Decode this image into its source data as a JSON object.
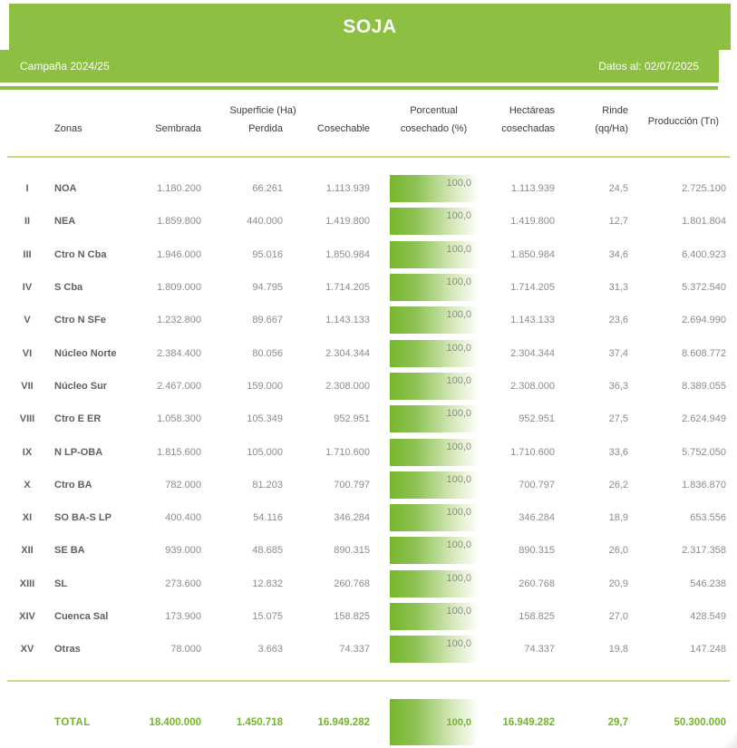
{
  "header": {
    "title": "SOJA",
    "campaign": "Campaña 2024/25",
    "data_as_of": "Datos al: 02/07/2025"
  },
  "columns": {
    "zonas": "Zonas",
    "superficie_group": "Superficie (Ha)",
    "sembrada": "Sembrada",
    "perdida": "Perdida",
    "cosechable": "Cosechable",
    "porcentual_line1": "Porcentual",
    "porcentual_line2": "cosechado (%)",
    "hectareas_line1": "Hectáreas",
    "hectareas_line2": "cosechadas",
    "rinde_line1": "Rinde",
    "rinde_line2": "(qq/Ha)",
    "produccion": "Producción (Tn)"
  },
  "rows": [
    {
      "num": "I",
      "zona": "NOA",
      "sembrada": "1.180.200",
      "perdida": "66.261",
      "cosechable": "1.113.939",
      "porcentual": "100,0",
      "hectareas": "1.113.939",
      "rinde": "24,5",
      "produccion": "2.725.100"
    },
    {
      "num": "II",
      "zona": "NEA",
      "sembrada": "1.859.800",
      "perdida": "440.000",
      "cosechable": "1.419.800",
      "porcentual": "100,0",
      "hectareas": "1.419.800",
      "rinde": "12,7",
      "produccion": "1.801.804"
    },
    {
      "num": "III",
      "zona": "Ctro N Cba",
      "sembrada": "1.946.000",
      "perdida": "95.016",
      "cosechable": "1.850.984",
      "porcentual": "100,0",
      "hectareas": "1.850.984",
      "rinde": "34,6",
      "produccion": "6.400.923"
    },
    {
      "num": "IV",
      "zona": "S Cba",
      "sembrada": "1.809.000",
      "perdida": "94.795",
      "cosechable": "1.714.205",
      "porcentual": "100,0",
      "hectareas": "1.714.205",
      "rinde": "31,3",
      "produccion": "5.372.540"
    },
    {
      "num": "V",
      "zona": "Ctro N SFe",
      "sembrada": "1.232.800",
      "perdida": "89.667",
      "cosechable": "1.143.133",
      "porcentual": "100,0",
      "hectareas": "1.143.133",
      "rinde": "23,6",
      "produccion": "2.694.990"
    },
    {
      "num": "VI",
      "zona": "Núcleo Norte",
      "sembrada": "2.384.400",
      "perdida": "80.056",
      "cosechable": "2.304.344",
      "porcentual": "100,0",
      "hectareas": "2.304.344",
      "rinde": "37,4",
      "produccion": "8.608.772"
    },
    {
      "num": "VII",
      "zona": "Núcleo Sur",
      "sembrada": "2.467.000",
      "perdida": "159.000",
      "cosechable": "2.308.000",
      "porcentual": "100,0",
      "hectareas": "2.308.000",
      "rinde": "36,3",
      "produccion": "8.389.055"
    },
    {
      "num": "VIII",
      "zona": "Ctro E ER",
      "sembrada": "1.058.300",
      "perdida": "105.349",
      "cosechable": "952.951",
      "porcentual": "100,0",
      "hectareas": "952.951",
      "rinde": "27,5",
      "produccion": "2.624.949"
    },
    {
      "num": "IX",
      "zona": "N LP-OBA",
      "sembrada": "1.815.600",
      "perdida": "105.000",
      "cosechable": "1.710.600",
      "porcentual": "100,0",
      "hectareas": "1.710.600",
      "rinde": "33,6",
      "produccion": "5.752.050"
    },
    {
      "num": "X",
      "zona": "Ctro BA",
      "sembrada": "782.000",
      "perdida": "81.203",
      "cosechable": "700.797",
      "porcentual": "100,0",
      "hectareas": "700.797",
      "rinde": "26,2",
      "produccion": "1.836.870"
    },
    {
      "num": "XI",
      "zona": "SO BA-S LP",
      "sembrada": "400.400",
      "perdida": "54.116",
      "cosechable": "346.284",
      "porcentual": "100,0",
      "hectareas": "346.284",
      "rinde": "18,9",
      "produccion": "653.556"
    },
    {
      "num": "XII",
      "zona": "SE BA",
      "sembrada": "939.000",
      "perdida": "48.685",
      "cosechable": "890.315",
      "porcentual": "100,0",
      "hectareas": "890.315",
      "rinde": "26,0",
      "produccion": "2.317.358"
    },
    {
      "num": "XIII",
      "zona": "SL",
      "sembrada": "273.600",
      "perdida": "12.832",
      "cosechable": "260.768",
      "porcentual": "100,0",
      "hectareas": "260.768",
      "rinde": "20,9",
      "produccion": "546.238"
    },
    {
      "num": "XIV",
      "zona": "Cuenca Sal",
      "sembrada": "173.900",
      "perdida": "15.075",
      "cosechable": "158.825",
      "porcentual": "100,0",
      "hectareas": "158.825",
      "rinde": "27,0",
      "produccion": "428.549"
    },
    {
      "num": "XV",
      "zona": "Otras",
      "sembrada": "78.000",
      "perdida": "3.663",
      "cosechable": "74.337",
      "porcentual": "100,0",
      "hectareas": "74.337",
      "rinde": "19,8",
      "produccion": "147.248"
    }
  ],
  "total": {
    "label": "TOTAL",
    "sembrada": "18.400.000",
    "perdida": "1.450.718",
    "cosechable": "16.949.282",
    "porcentual": "100,0",
    "hectareas": "16.949.282",
    "rinde": "29,7",
    "produccion": "50.300.000"
  },
  "colors": {
    "banner_green": "#8dbf42",
    "bar_start": "#76b72c",
    "rule_olive": "#c9da7c",
    "total_green": "#72b52c",
    "number_gray": "#8c8c8c",
    "zone_gray": "#616161",
    "header_text": "#3c3c3c"
  }
}
